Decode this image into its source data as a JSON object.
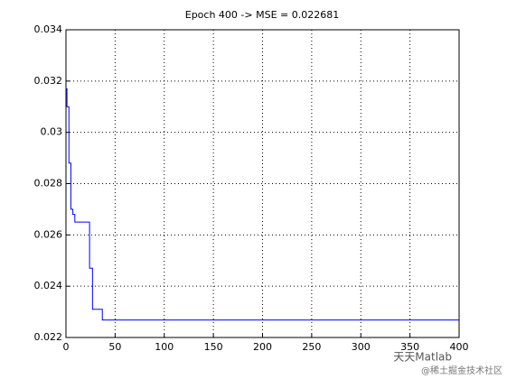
{
  "chart_data": {
    "type": "line",
    "title": "Epoch  400 -> MSE = 0.022681",
    "x": [
      0,
      1,
      1,
      3,
      3,
      5,
      5,
      7,
      7,
      9,
      9,
      24,
      24,
      27,
      27,
      37,
      37,
      400
    ],
    "series": [
      {
        "color": "#0000ff",
        "values": [
          0.0317,
          0.0317,
          0.031,
          0.031,
          0.0288,
          0.0288,
          0.027,
          0.027,
          0.0268,
          0.0268,
          0.0265,
          0.0265,
          0.0247,
          0.0247,
          0.0231,
          0.0231,
          0.02268,
          0.02268
        ]
      }
    ],
    "xlim": [
      0,
      400
    ],
    "xticks": [
      0,
      50,
      100,
      150,
      200,
      250,
      300,
      350,
      400
    ],
    "ylim": [
      0.022,
      0.034
    ],
    "yticks": [
      0.022,
      0.024,
      0.026,
      0.028,
      0.03,
      0.032,
      0.034
    ],
    "grid": true
  },
  "watermark": {
    "brand": "天天Matlab",
    "site": "@稀土掘金技术社区"
  }
}
